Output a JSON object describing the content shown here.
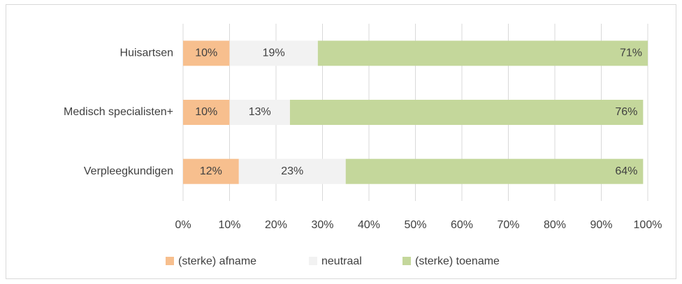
{
  "chart_data": {
    "type": "stacked_bar_horizontal",
    "categories": [
      "Huisartsen",
      "Medisch specialisten+",
      "Verpleegkundigen"
    ],
    "series": [
      {
        "name": "(sterke) afname",
        "color": "#f7bf8e",
        "values": [
          10,
          10,
          12
        ],
        "value_labels": [
          "10%",
          "10%",
          "12%"
        ]
      },
      {
        "name": "neutraal",
        "color": "#f2f2f2",
        "values": [
          19,
          13,
          23
        ],
        "value_labels": [
          "19%",
          "13%",
          "23%"
        ]
      },
      {
        "name": "(sterke) toename",
        "color": "#c4d79b",
        "values": [
          71,
          76,
          64
        ],
        "value_labels": [
          "71%",
          "76%",
          "64%"
        ]
      }
    ],
    "xlim": [
      0,
      100
    ],
    "xticks": [
      {
        "value": 0,
        "label": "0%"
      },
      {
        "value": 10,
        "label": "10%"
      },
      {
        "value": 20,
        "label": "20%"
      },
      {
        "value": 30,
        "label": "30%"
      },
      {
        "value": 40,
        "label": "40%"
      },
      {
        "value": 50,
        "label": "50%"
      },
      {
        "value": 60,
        "label": "60%"
      },
      {
        "value": 70,
        "label": "70%"
      },
      {
        "value": 80,
        "label": "80%"
      },
      {
        "value": 90,
        "label": "90%"
      },
      {
        "value": 100,
        "label": "100%"
      }
    ],
    "grid": true,
    "legend": "bottom"
  }
}
